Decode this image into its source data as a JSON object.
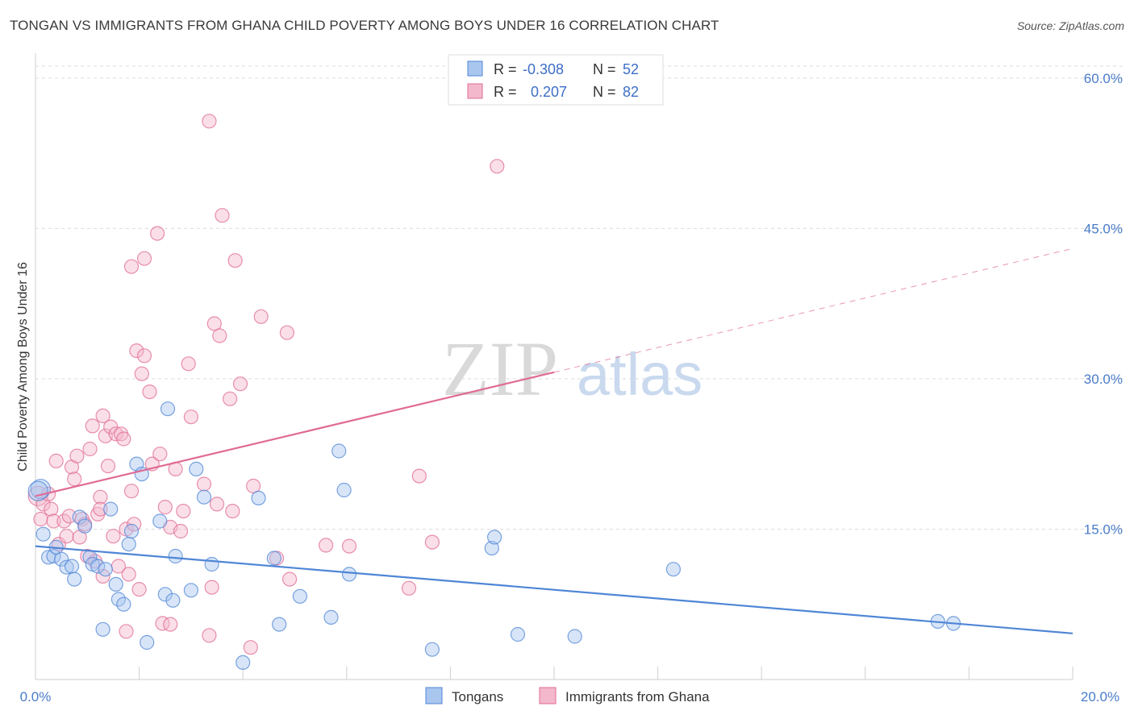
{
  "title": "TONGAN VS IMMIGRANTS FROM GHANA CHILD POVERTY AMONG BOYS UNDER 16 CORRELATION CHART",
  "source": "Source: ZipAtlas.com",
  "watermark": {
    "zip": "ZIP",
    "atlas": "atlas"
  },
  "colors": {
    "blue": "#4f86d6",
    "blue_fill": "#a9c6ef",
    "pink": "#e06b94",
    "pink_fill": "#f3b8cb",
    "axis_text": "#4a7cc9"
  },
  "stats": [
    {
      "r_label": "R =",
      "r_value": "-0.308",
      "n_label": "N =",
      "n_value": "52"
    },
    {
      "r_label": "R =",
      "r_value": "0.207",
      "n_label": "N =",
      "n_value": "82"
    }
  ],
  "chart_data": {
    "type": "scatter",
    "title": "TONGAN VS IMMIGRANTS FROM GHANA CHILD POVERTY AMONG BOYS UNDER 16 CORRELATION CHART",
    "xlabel": "",
    "ylabel": "Child Poverty Among Boys Under 16",
    "xlim": [
      0,
      20
    ],
    "ylim": [
      0,
      62
    ],
    "x_tick_labels": [
      "0.0%",
      "20.0%"
    ],
    "y_ticks": [
      15,
      30,
      45,
      60
    ],
    "y_tick_labels": [
      "15.0%",
      "30.0%",
      "45.0%",
      "60.0%"
    ],
    "grid": true,
    "legend_position": "bottom",
    "series": [
      {
        "name": "Tongans",
        "color": "#4f86d6",
        "trend": {
          "x0": 0,
          "y0": 13.3,
          "x1": 20,
          "y1": 4.6,
          "dashed_from": null
        },
        "points": [
          [
            0.1,
            19.0
          ],
          [
            0.15,
            14.5
          ],
          [
            0.25,
            12.2
          ],
          [
            0.35,
            12.3
          ],
          [
            0.4,
            13.2
          ],
          [
            0.5,
            12.0
          ],
          [
            0.6,
            11.2
          ],
          [
            0.7,
            11.3
          ],
          [
            0.75,
            10.0
          ],
          [
            0.85,
            16.2
          ],
          [
            0.95,
            15.3
          ],
          [
            1.05,
            12.2
          ],
          [
            1.1,
            11.5
          ],
          [
            1.2,
            11.3
          ],
          [
            1.35,
            11.0
          ],
          [
            1.45,
            17.0
          ],
          [
            1.55,
            9.5
          ],
          [
            1.6,
            8.0
          ],
          [
            1.7,
            7.5
          ],
          [
            1.3,
            5.0
          ],
          [
            1.8,
            13.5
          ],
          [
            1.85,
            14.8
          ],
          [
            1.95,
            21.5
          ],
          [
            2.05,
            20.5
          ],
          [
            2.15,
            3.7
          ],
          [
            2.4,
            15.8
          ],
          [
            2.5,
            8.5
          ],
          [
            2.55,
            27.0
          ],
          [
            2.65,
            7.9
          ],
          [
            2.7,
            12.3
          ],
          [
            3.0,
            8.9
          ],
          [
            3.1,
            21.0
          ],
          [
            3.25,
            18.2
          ],
          [
            3.4,
            11.5
          ],
          [
            4.0,
            1.7
          ],
          [
            4.3,
            18.1
          ],
          [
            4.6,
            12.1
          ],
          [
            4.7,
            5.5
          ],
          [
            5.1,
            8.3
          ],
          [
            5.7,
            6.2
          ],
          [
            5.85,
            22.8
          ],
          [
            5.95,
            18.9
          ],
          [
            6.05,
            10.5
          ],
          [
            7.65,
            3.0
          ],
          [
            8.8,
            13.1
          ],
          [
            8.85,
            14.2
          ],
          [
            9.3,
            4.5
          ],
          [
            10.4,
            4.3
          ],
          [
            12.3,
            11.0
          ],
          [
            17.4,
            5.8
          ],
          [
            17.7,
            5.6
          ],
          [
            0.05,
            18.8
          ]
        ]
      },
      {
        "name": "Immigrants from Ghana",
        "color": "#e06b94",
        "trend": {
          "x0": 0,
          "y0": 18.3,
          "x1": 20,
          "y1": 43.0,
          "dashed_from": 10
        },
        "points": [
          [
            0.05,
            18.3
          ],
          [
            0.1,
            16.0
          ],
          [
            0.15,
            17.5
          ],
          [
            0.25,
            18.5
          ],
          [
            0.3,
            17.0
          ],
          [
            0.35,
            15.8
          ],
          [
            0.4,
            21.8
          ],
          [
            0.45,
            13.5
          ],
          [
            0.55,
            15.8
          ],
          [
            0.6,
            14.3
          ],
          [
            0.65,
            16.3
          ],
          [
            0.7,
            21.2
          ],
          [
            0.75,
            20.0
          ],
          [
            0.8,
            22.3
          ],
          [
            0.85,
            14.2
          ],
          [
            0.9,
            16.0
          ],
          [
            0.95,
            15.5
          ],
          [
            1.0,
            12.3
          ],
          [
            1.05,
            23.0
          ],
          [
            1.1,
            25.3
          ],
          [
            1.15,
            11.8
          ],
          [
            1.2,
            16.5
          ],
          [
            1.25,
            18.2
          ],
          [
            1.25,
            17.0
          ],
          [
            1.3,
            26.3
          ],
          [
            1.3,
            10.3
          ],
          [
            1.35,
            24.3
          ],
          [
            1.4,
            21.3
          ],
          [
            1.45,
            25.2
          ],
          [
            1.5,
            14.3
          ],
          [
            1.55,
            24.5
          ],
          [
            1.6,
            11.3
          ],
          [
            1.65,
            24.5
          ],
          [
            1.7,
            24.0
          ],
          [
            1.75,
            15.0
          ],
          [
            1.8,
            10.5
          ],
          [
            1.85,
            41.2
          ],
          [
            1.85,
            18.8
          ],
          [
            1.9,
            15.5
          ],
          [
            1.95,
            32.8
          ],
          [
            2.0,
            9.0
          ],
          [
            2.05,
            30.5
          ],
          [
            2.1,
            42.0
          ],
          [
            2.1,
            32.3
          ],
          [
            2.2,
            28.7
          ],
          [
            2.25,
            21.5
          ],
          [
            2.35,
            44.5
          ],
          [
            2.4,
            22.5
          ],
          [
            2.45,
            5.6
          ],
          [
            2.5,
            17.2
          ],
          [
            2.6,
            15.2
          ],
          [
            2.7,
            21.0
          ],
          [
            2.8,
            14.8
          ],
          [
            2.85,
            16.8
          ],
          [
            2.95,
            31.5
          ],
          [
            3.0,
            26.2
          ],
          [
            3.25,
            19.5
          ],
          [
            3.35,
            4.4
          ],
          [
            3.4,
            9.2
          ],
          [
            3.45,
            35.5
          ],
          [
            3.5,
            17.5
          ],
          [
            3.55,
            34.3
          ],
          [
            3.6,
            46.3
          ],
          [
            3.75,
            28.0
          ],
          [
            3.85,
            41.8
          ],
          [
            3.8,
            16.8
          ],
          [
            3.95,
            29.5
          ],
          [
            4.2,
            19.3
          ],
          [
            4.35,
            36.2
          ],
          [
            4.65,
            12.1
          ],
          [
            4.85,
            34.6
          ],
          [
            4.9,
            10.0
          ],
          [
            3.35,
            55.7
          ],
          [
            5.6,
            13.4
          ],
          [
            6.05,
            13.3
          ],
          [
            7.2,
            9.1
          ],
          [
            7.4,
            20.3
          ],
          [
            7.65,
            13.7
          ],
          [
            8.9,
            51.2
          ],
          [
            4.15,
            3.2
          ],
          [
            2.6,
            5.5
          ],
          [
            1.75,
            4.8
          ]
        ]
      }
    ]
  },
  "legend_bottom": [
    "Tongans",
    "Immigrants from Ghana"
  ]
}
